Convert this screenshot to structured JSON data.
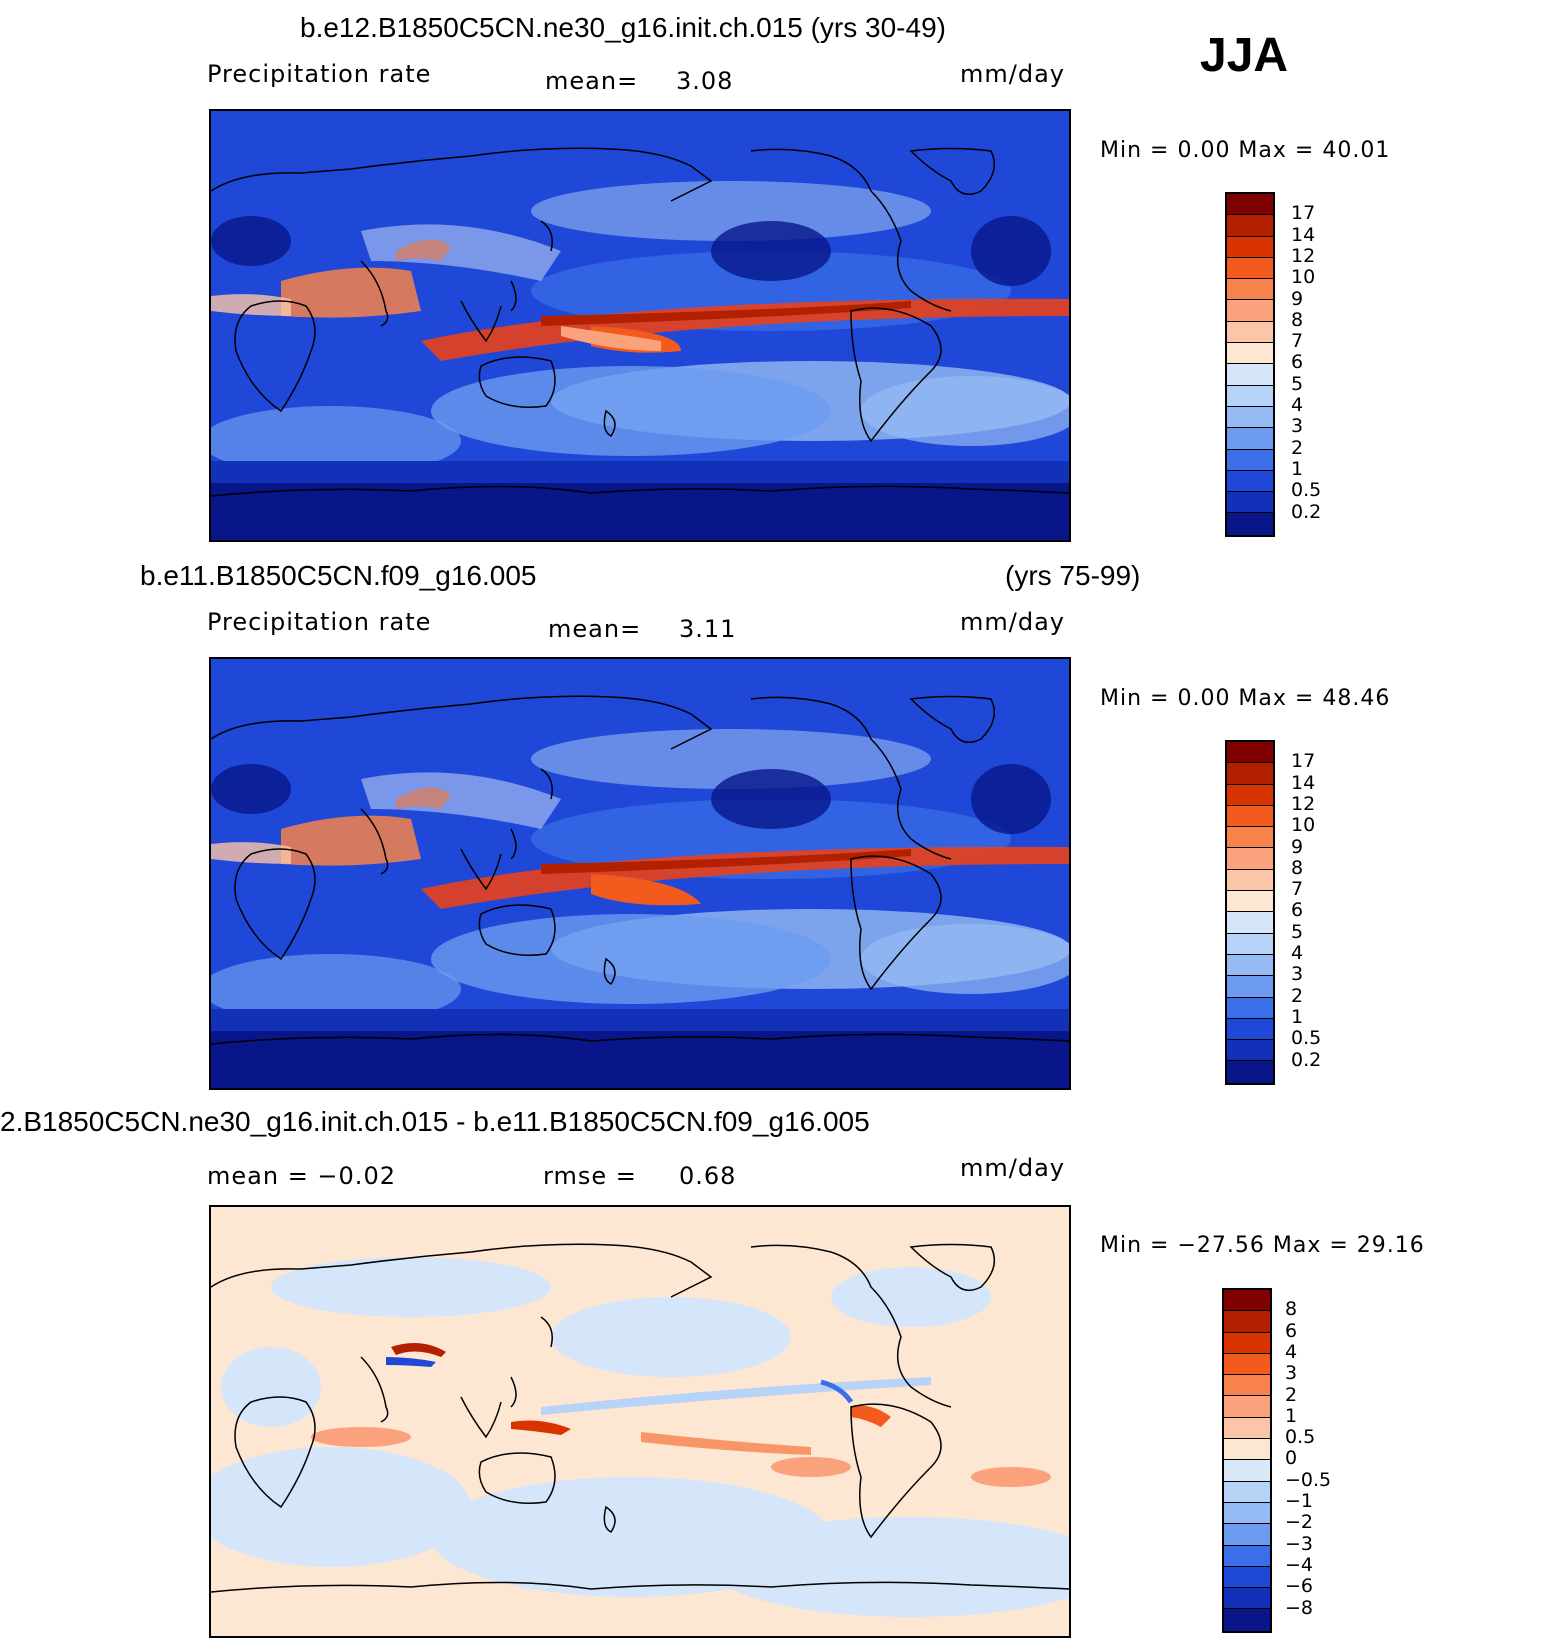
{
  "season": "JJA",
  "panels": [
    {
      "title": "b.e12.B1850C5CN.ne30_g16.init.ch.015 (yrs 30-49)",
      "years": "",
      "left_label": "Precipitation  rate",
      "stat_label": "mean=",
      "stat_value": "3.08",
      "stat2_label": "",
      "stat2_value": "",
      "units": "mm/day",
      "minmax": "Min  =     0.00  Max  =    40.01",
      "colorbar": {
        "labels": [
          "17",
          "14",
          "12",
          "10",
          "9",
          "8",
          "7",
          "6",
          "5",
          "4",
          "3",
          "2",
          "1",
          "0.5",
          "0.2"
        ],
        "colors": [
          "#7f0000",
          "#b22000",
          "#d93400",
          "#f25a1e",
          "#f7824c",
          "#f9a27b",
          "#fbc6a7",
          "#fde6d2",
          "#d5e6fa",
          "#b7d3f7",
          "#96baf3",
          "#6c9bef",
          "#3b6fe8",
          "#1f48d8",
          "#1230b8",
          "#08168a"
        ]
      }
    },
    {
      "title": "b.e11.B1850C5CN.f09_g16.005",
      "years": "(yrs 75-99)",
      "left_label": "Precipitation  rate",
      "stat_label": "mean=",
      "stat_value": "3.11",
      "stat2_label": "",
      "stat2_value": "",
      "units": "mm/day",
      "minmax": "Min  =     0.00  Max  =    48.46",
      "colorbar": {
        "labels": [
          "17",
          "14",
          "12",
          "10",
          "9",
          "8",
          "7",
          "6",
          "5",
          "4",
          "3",
          "2",
          "1",
          "0.5",
          "0.2"
        ],
        "colors": [
          "#7f0000",
          "#b22000",
          "#d93400",
          "#f25a1e",
          "#f7824c",
          "#f9a27b",
          "#fbc6a7",
          "#fde6d2",
          "#d5e6fa",
          "#b7d3f7",
          "#96baf3",
          "#6c9bef",
          "#3b6fe8",
          "#1f48d8",
          "#1230b8",
          "#08168a"
        ]
      }
    },
    {
      "title": "2.B1850C5CN.ne30_g16.init.ch.015 - b.e11.B1850C5CN.f09_g16.005",
      "years": "",
      "left_label": "mean  =    −0.02",
      "stat_label": "rmse  =",
      "stat_value": "0.68",
      "units": "mm/day",
      "minmax": "Min  =  −27.56  Max  =    29.16",
      "colorbar": {
        "labels": [
          "8",
          "6",
          "4",
          "3",
          "2",
          "1",
          "0.5",
          "0",
          "−0.5",
          "−1",
          "−2",
          "−3",
          "−4",
          "−6",
          "−8"
        ],
        "colors": [
          "#7f0000",
          "#b22000",
          "#d93400",
          "#f25a1e",
          "#f7824c",
          "#f9a27b",
          "#fbc6a7",
          "#fde6d2",
          "#dbe8fa",
          "#b7d3f7",
          "#96baf3",
          "#6c9bef",
          "#3b6fe8",
          "#1f48d8",
          "#1230b8",
          "#08168a"
        ]
      }
    }
  ],
  "colors": {
    "ocean_base_abs": "#1f48d8",
    "itcz": "#e8401a",
    "diff_base": "#fde6d2",
    "diff_alt": "#d5e6fa",
    "coast": "#000000"
  }
}
